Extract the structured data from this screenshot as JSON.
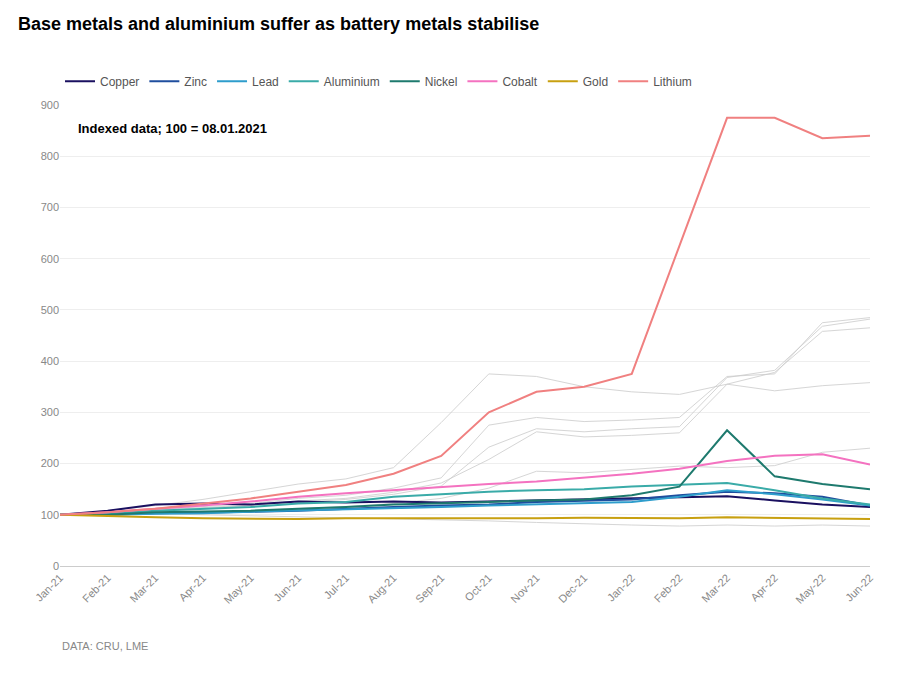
{
  "chart_data": {
    "type": "line",
    "title": "Base metals and aluminium suffer as battery metals stabilise",
    "subtitle": "Indexed data; 100 = 08.01.2021",
    "annotations": [
      "DATA: CRU, LME"
    ],
    "categories": [
      "Jan-21",
      "Feb-21",
      "Mar-21",
      "Apr-21",
      "May-21",
      "Jun-21",
      "Jul-21",
      "Aug-21",
      "Sep-21",
      "Oct-21",
      "Nov-21",
      "Dec-21",
      "Jan-22",
      "Feb-22",
      "Mar-22",
      "Apr-22",
      "May-22",
      "Jun-22"
    ],
    "series": [
      {
        "color": "#cccccc",
        "values": [
          100,
          108,
          118,
          130,
          145,
          160,
          170,
          192,
          280,
          375,
          370,
          350,
          340,
          335,
          355,
          342,
          352,
          358
        ]
      },
      {
        "color": "#cccccc",
        "values": [
          100,
          104,
          110,
          116,
          122,
          132,
          138,
          152,
          172,
          275,
          290,
          282,
          285,
          290,
          370,
          375,
          475,
          485
        ]
      },
      {
        "color": "#cccccc",
        "values": [
          100,
          103,
          108,
          112,
          118,
          124,
          130,
          140,
          156,
          232,
          268,
          262,
          268,
          272,
          368,
          382,
          468,
          482
        ]
      },
      {
        "color": "#cccccc",
        "values": [
          100,
          104,
          109,
          114,
          119,
          127,
          132,
          144,
          162,
          208,
          262,
          252,
          255,
          260,
          355,
          378,
          458,
          465
        ]
      },
      {
        "color": "#cccccc",
        "values": [
          100,
          102,
          104,
          104,
          108,
          112,
          116,
          122,
          132,
          152,
          185,
          182,
          188,
          195,
          192,
          196,
          222,
          230
        ]
      },
      {
        "color": "#cccccc",
        "values": [
          100,
          101,
          102,
          100,
          98,
          97,
          95,
          93,
          90,
          88,
          85,
          82,
          80,
          78,
          80,
          78,
          80,
          78
        ]
      },
      {
        "name": "Copper",
        "color": "#1a1060",
        "values": [
          100,
          108,
          120,
          122,
          120,
          126,
          124,
          126,
          124,
          126,
          128,
          130,
          132,
          134,
          136,
          128,
          120,
          115
        ]
      },
      {
        "name": "Zinc",
        "color": "#1f4e9e",
        "values": [
          100,
          100,
          103,
          104,
          106,
          108,
          112,
          115,
          118,
          120,
          125,
          128,
          130,
          138,
          145,
          142,
          135,
          118
        ]
      },
      {
        "name": "Lead",
        "color": "#2e9dcc",
        "values": [
          100,
          100,
          102,
          103,
          106,
          108,
          110,
          112,
          115,
          118,
          120,
          122,
          125,
          135,
          148,
          140,
          130,
          118
        ]
      },
      {
        "name": "Aluminium",
        "color": "#3aaba8",
        "values": [
          100,
          102,
          108,
          112,
          115,
          122,
          125,
          135,
          140,
          145,
          148,
          150,
          155,
          158,
          162,
          148,
          132,
          120
        ]
      },
      {
        "name": "Nickel",
        "color": "#1e7a6e",
        "values": [
          100,
          100,
          105,
          106,
          108,
          112,
          115,
          120,
          122,
          125,
          128,
          130,
          138,
          155,
          265,
          175,
          160,
          150
        ]
      },
      {
        "name": "Cobalt",
        "color": "#f472c0",
        "values": [
          100,
          105,
          112,
          118,
          126,
          135,
          142,
          148,
          155,
          160,
          165,
          172,
          180,
          190,
          205,
          215,
          218,
          198
        ]
      },
      {
        "name": "Gold",
        "color": "#c8a010",
        "values": [
          100,
          97,
          95,
          93,
          92,
          92,
          93,
          93,
          92,
          92,
          93,
          94,
          93,
          93,
          95,
          94,
          92,
          92
        ]
      },
      {
        "name": "Lithium",
        "color": "#f08080",
        "values": [
          100,
          105,
          112,
          122,
          132,
          145,
          158,
          180,
          215,
          300,
          340,
          350,
          375,
          625,
          875,
          875,
          835,
          840
        ]
      }
    ],
    "ylim": [
      0,
      900
    ],
    "yticks": [
      0,
      100,
      200,
      300,
      400,
      500,
      600,
      700,
      800,
      900
    ],
    "grid": true,
    "legend": "top left"
  }
}
